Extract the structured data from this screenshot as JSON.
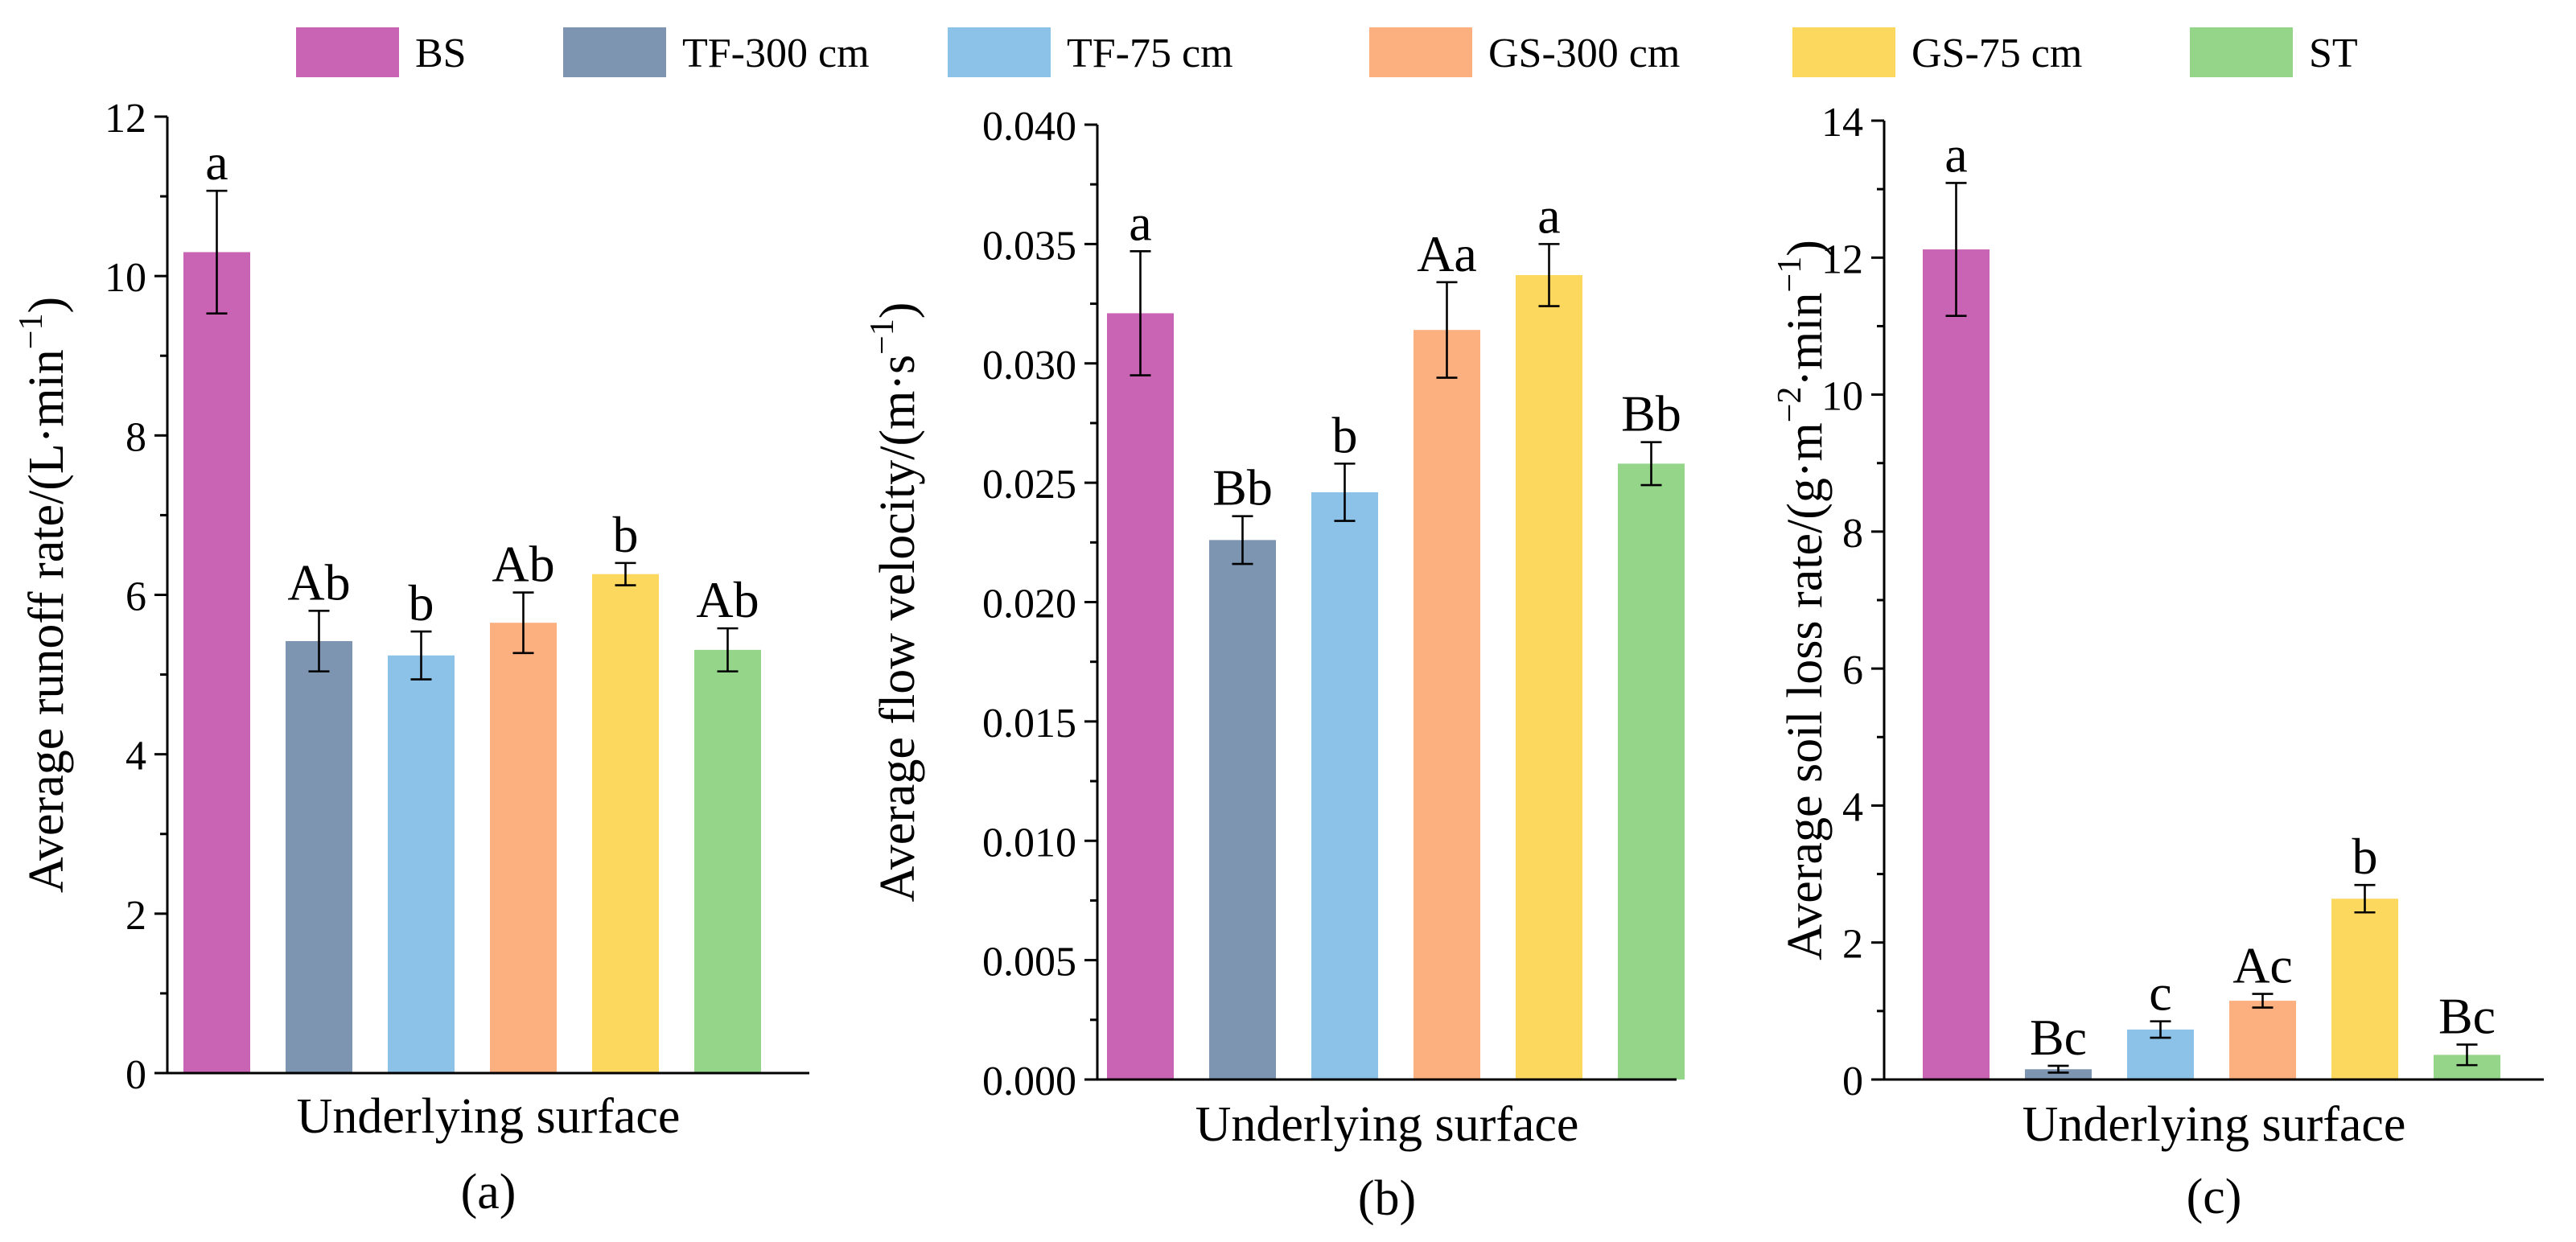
{
  "legend": [
    {
      "label": "BS",
      "color": "#C963B4"
    },
    {
      "label": "TF-300 cm",
      "color": "#7D95B1"
    },
    {
      "label": "TF-75 cm",
      "color": "#8CC2E8"
    },
    {
      "label": "GS-300 cm",
      "color": "#FDB07F"
    },
    {
      "label": "GS-75 cm",
      "color": "#FDD85F"
    },
    {
      "label": "ST",
      "color": "#95D58A"
    }
  ],
  "chart_data": [
    {
      "type": "bar",
      "panel_label": "(a)",
      "xlabel": "Underlying surface",
      "ylabel": "Average runoff rate/(L·min",
      "ylabel_sup": "−1",
      "ylabel_end": ")",
      "ylim": [
        0,
        12
      ],
      "yticks": [
        "0",
        "2",
        "4",
        "6",
        "8",
        "10",
        "12"
      ],
      "categories": [
        "BS",
        "TF-300 cm",
        "TF-75 cm",
        "GS-300 cm",
        "GS-75 cm",
        "ST"
      ],
      "values": [
        10.3,
        5.42,
        5.24,
        5.65,
        6.26,
        5.31
      ],
      "errors": [
        0.77,
        0.38,
        0.3,
        0.38,
        0.14,
        0.27
      ],
      "letters": [
        "a",
        "Ab",
        "b",
        "Ab",
        "b",
        "Ab"
      ]
    },
    {
      "type": "bar",
      "panel_label": "(b)",
      "xlabel": "Underlying surface",
      "ylabel": "Average flow velocity/(m·s",
      "ylabel_sup": "−1",
      "ylabel_end": ")",
      "ylim": [
        0,
        0.04
      ],
      "yticks": [
        "0.000",
        "0.005",
        "0.010",
        "0.015",
        "0.020",
        "0.025",
        "0.030",
        "0.035",
        "0.040"
      ],
      "categories": [
        "BS",
        "TF-300 cm",
        "TF-75 cm",
        "GS-300 cm",
        "GS-75 cm",
        "ST"
      ],
      "values": [
        0.0321,
        0.0226,
        0.0246,
        0.0314,
        0.0337,
        0.0258
      ],
      "errors": [
        0.0026,
        0.001,
        0.0012,
        0.002,
        0.0013,
        0.0009
      ],
      "letters": [
        "a",
        "Bb",
        "b",
        "Aa",
        "a",
        "Bb"
      ]
    },
    {
      "type": "bar",
      "panel_label": "(c)",
      "xlabel": "Underlying surface",
      "ylabel": "Average soil loss rate/(g·m",
      "ylabel_sup": "−2",
      "ylabel_mid": "·min",
      "ylabel_sup2": "−1",
      "ylabel_end": ")",
      "ylim": [
        0,
        14
      ],
      "yticks": [
        "0",
        "2",
        "4",
        "6",
        "8",
        "10",
        "12",
        "14"
      ],
      "categories": [
        "BS",
        "TF-300 cm",
        "TF-75 cm",
        "GS-300 cm",
        "GS-75 cm",
        "ST"
      ],
      "values": [
        12.12,
        0.15,
        0.73,
        1.15,
        2.64,
        0.36
      ],
      "errors": [
        0.97,
        0.05,
        0.12,
        0.1,
        0.2,
        0.15
      ],
      "letters": [
        "a",
        "Bc",
        "c",
        "Ac",
        "b",
        "Bc"
      ]
    }
  ]
}
